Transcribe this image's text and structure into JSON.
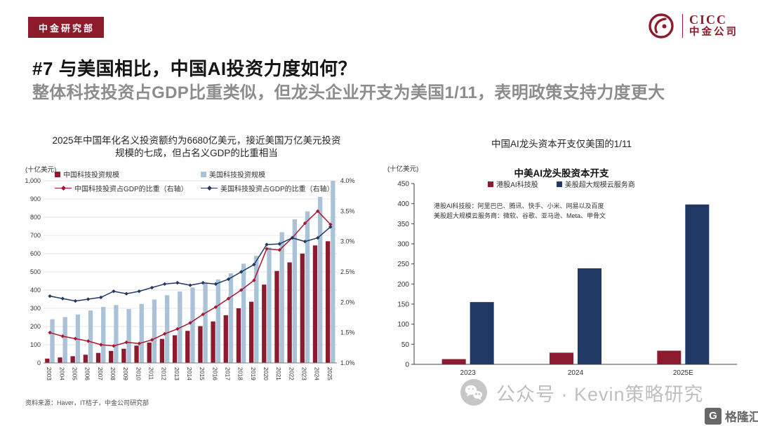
{
  "header": {
    "badge": "中金研究部",
    "logo_text": "CICC",
    "logo_company": "中金公司",
    "title": "#7 与美国相比，中国AI投资力度如何？",
    "subtitle": "整体科技投资占GDP比重类似，但龙头企业开支为美国1/11，表明政策支持力度更大"
  },
  "left_panel": {
    "heading_line1": "2025年中国年化名义投资额约为6680亿美元，接近美国万亿美元投资",
    "heading_line2": "规模的七成，但占名义GDP的比重相当",
    "source": "资料来源：Haver，IT桔子，中金公司研究部"
  },
  "right_panel": {
    "heading": "中国AI龙头资本开支仅美国的1/11"
  },
  "watermark": {
    "text": "公众号 · Kevin策略研究"
  },
  "corner_logo": {
    "glyph": "G",
    "text": "格隆汇"
  },
  "colors": {
    "brand_red": "#8E1B2B",
    "china_bar_red": "#8C1B2F",
    "us_bar_light_blue": "#A9C2D8",
    "china_line_red": "#A8192E",
    "us_line_navy": "#1F3864",
    "subtitle_gray": "#8C8C8C"
  },
  "chart_data": [
    {
      "type": "bar+line",
      "title": "2025年中国年化名义投资额约为6680亿美元，接近美国万亿美元投资规模的七成，但占名义GDP的比重相当",
      "unit_left": "(十亿美元)",
      "legend_position": "top",
      "grid": true,
      "categories": [
        "2003",
        "2004",
        "2005",
        "2006",
        "2007",
        "2008",
        "2009",
        "2010",
        "2011",
        "2012",
        "2013",
        "2014",
        "2015",
        "2016",
        "2017",
        "2018",
        "2019",
        "2020",
        "2021",
        "2022",
        "2023",
        "2024",
        "2025"
      ],
      "left_axis": {
        "min": 0,
        "max": 1000,
        "step": 100
      },
      "right_axis": {
        "min": 1.0,
        "max": 4.0,
        "step": 0.5,
        "suffix": "%"
      },
      "series": [
        {
          "name": "中国科技投资规模",
          "type": "bar",
          "axis": "left",
          "color": "#8C1B2F",
          "values": [
            24,
            30,
            37,
            45,
            55,
            66,
            78,
            95,
            112,
            132,
            152,
            176,
            202,
            228,
            262,
            300,
            336,
            430,
            505,
            552,
            600,
            645,
            668
          ]
        },
        {
          "name": "美国科技投资规模",
          "type": "bar",
          "axis": "left",
          "color": "#A9C2D8",
          "values": [
            240,
            252,
            266,
            288,
            308,
            318,
            296,
            324,
            348,
            372,
            392,
            414,
            440,
            458,
            492,
            545,
            588,
            634,
            718,
            788,
            832,
            912,
            1000
          ]
        },
        {
          "name": "中国科技投资占GDP的比重（右轴）",
          "type": "line",
          "axis": "right",
          "color": "#A8192E",
          "values": [
            1.5,
            1.44,
            1.4,
            1.36,
            1.3,
            1.28,
            1.34,
            1.32,
            1.38,
            1.48,
            1.56,
            1.66,
            1.8,
            1.92,
            2.06,
            2.2,
            2.36,
            2.88,
            2.86,
            3.06,
            3.3,
            3.5,
            3.28
          ]
        },
        {
          "name": "美国科技投资占GDP的比重（右轴）",
          "type": "line",
          "axis": "right",
          "color": "#1F3864",
          "values": [
            2.1,
            2.06,
            2.02,
            2.05,
            2.08,
            2.18,
            2.14,
            2.18,
            2.24,
            2.3,
            2.32,
            2.28,
            2.32,
            2.3,
            2.38,
            2.5,
            2.62,
            2.95,
            2.96,
            3.06,
            3.0,
            3.06,
            3.24
          ]
        }
      ]
    },
    {
      "type": "bar",
      "title": "中美AI龙头股资本开支",
      "unit": "(十亿美元)",
      "grid": false,
      "legend_position": "top",
      "categories": [
        "2023",
        "2024",
        "2025E"
      ],
      "ylim": [
        0,
        450
      ],
      "ystep": 50,
      "series": [
        {
          "name": "港股AI科技股",
          "color": "#8C1B2F",
          "values": [
            13,
            29,
            34
          ]
        },
        {
          "name": "美股超大规模云服务商",
          "color": "#1F3864",
          "values": [
            155,
            239,
            398
          ]
        }
      ],
      "notes": [
        "港股AI科技股：阿里巴巴、腾讯、快手、小米、网易以及百度",
        "美股超大规模云服务商：微软、谷歌、亚马逊、Meta、甲骨文"
      ]
    }
  ]
}
